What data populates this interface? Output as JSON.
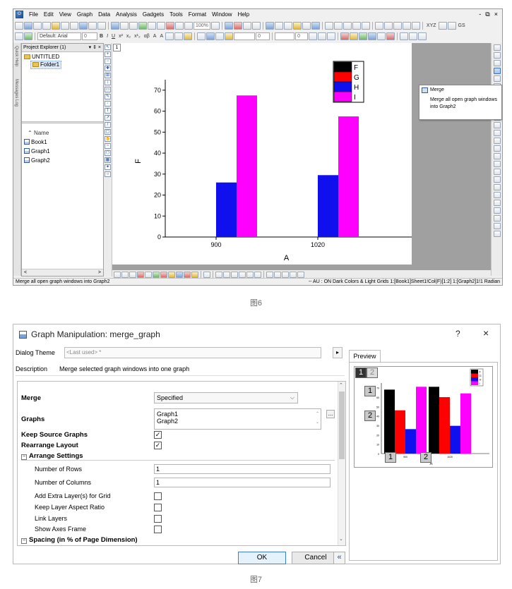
{
  "app": {
    "menu": [
      "File",
      "Edit",
      "View",
      "Graph",
      "Data",
      "Analysis",
      "Gadgets",
      "Tools",
      "Format",
      "Window",
      "Help"
    ],
    "window_controls": [
      "-",
      "⧉",
      "×"
    ],
    "toolbar2": {
      "zoom": "100%",
      "marks": [
        "xy",
        "XYZ",
        "GS"
      ]
    },
    "toolbar3": {
      "font": "Default: Arial",
      "font_size": "0",
      "style_buttons": [
        "B",
        "I",
        "U",
        "x²",
        "x₂",
        "x¹₂",
        "αβ",
        "A",
        "A"
      ],
      "line_width": "0",
      "box": "0"
    },
    "left_tabs": [
      "Quick Help",
      "Messages Log"
    ],
    "explorer": {
      "title": "Project Explorer (1)",
      "header_controls": "▾ ⇕ ×",
      "root": "UNTITLED",
      "folder": "Folder1",
      "list_header": "Name",
      "items": [
        "Book1",
        "Graph1",
        "Graph2"
      ],
      "scroll_left": "<",
      "scroll_right": ">"
    },
    "graph": {
      "layer_button": "1"
    },
    "tooltip": {
      "title": "Merge",
      "description": "Merge all open graph windows into Graph2"
    },
    "status": {
      "left": "Merge all open graph windows into Graph2",
      "right": "-- AU : ON  Dark Colors & Light Grids  1:[Book1]Sheet1!Col(F)[1:2]  1:[Graph2]1!1  Radian"
    }
  },
  "chart_data": {
    "type": "bar",
    "categories": [
      "900",
      "1020"
    ],
    "series": [
      {
        "name": "F",
        "values": [
          0,
          0
        ]
      },
      {
        "name": "G",
        "values": [
          0,
          0
        ]
      },
      {
        "name": "H",
        "values": [
          26,
          29.5
        ]
      },
      {
        "name": "I",
        "values": [
          67.5,
          57.5
        ]
      }
    ],
    "xlabel": "A",
    "ylabel": "F",
    "ylim": [
      0,
      75
    ],
    "yticks": [
      0,
      10,
      20,
      30,
      40,
      50,
      60,
      70
    ],
    "grid": false,
    "legend_placement": "top-right",
    "colors": {
      "F": "#000000",
      "G": "#ff0000",
      "H": "#1010ee",
      "I": "#ff00ff"
    }
  },
  "caption1": "图6",
  "dialog": {
    "title": "Graph Manipulation: merge_graph",
    "help": "?",
    "close": "×",
    "theme_label": "Dialog Theme",
    "theme_value": "<Last used> *",
    "theme_arrow": "▸",
    "description_label": "Description",
    "description_value": "Merge selected graph windows into one graph",
    "rows": {
      "merge_label": "Merge",
      "merge_value": "Specified",
      "graphs_label": "Graphs",
      "graphs_values": [
        "Graph1",
        "Graph2"
      ],
      "graphs_button": "...",
      "keep_source_label": "Keep Source Graphs",
      "keep_source_checked": "✓",
      "rearrange_label": "Rearrange Layout",
      "rearrange_checked": "✓",
      "arrange_section": "Arrange Settings",
      "rows_label": "Number of Rows",
      "rows_value": "1",
      "cols_label": "Number of Columns",
      "cols_value": "1",
      "extra_layer_label": "Add Extra Layer(s) for Grid",
      "aspect_label": "Keep Layer Aspect Ratio",
      "link_label": "Link Layers",
      "frame_label": "Show Axes Frame",
      "spacing_section": "Spacing (in % of Page Dimension)",
      "section_toggle": "−"
    },
    "ok": "OK",
    "cancel": "Cancel",
    "collapse": "«",
    "preview_tab": "Preview",
    "preview_badges": {
      "tab1": "1",
      "tab2": "2",
      "layer1": "1",
      "layer2": "2",
      "top1": "1",
      "top2": "2"
    },
    "preview_chart": {
      "categories": [
        "900",
        "1020"
      ],
      "series_values": {
        "F": [
          68,
          71
        ],
        "G": [
          46,
          60
        ],
        "H": [
          26,
          29.5
        ],
        "I": [
          71,
          64
        ]
      },
      "xlabel": "A"
    }
  },
  "caption2": "图7"
}
